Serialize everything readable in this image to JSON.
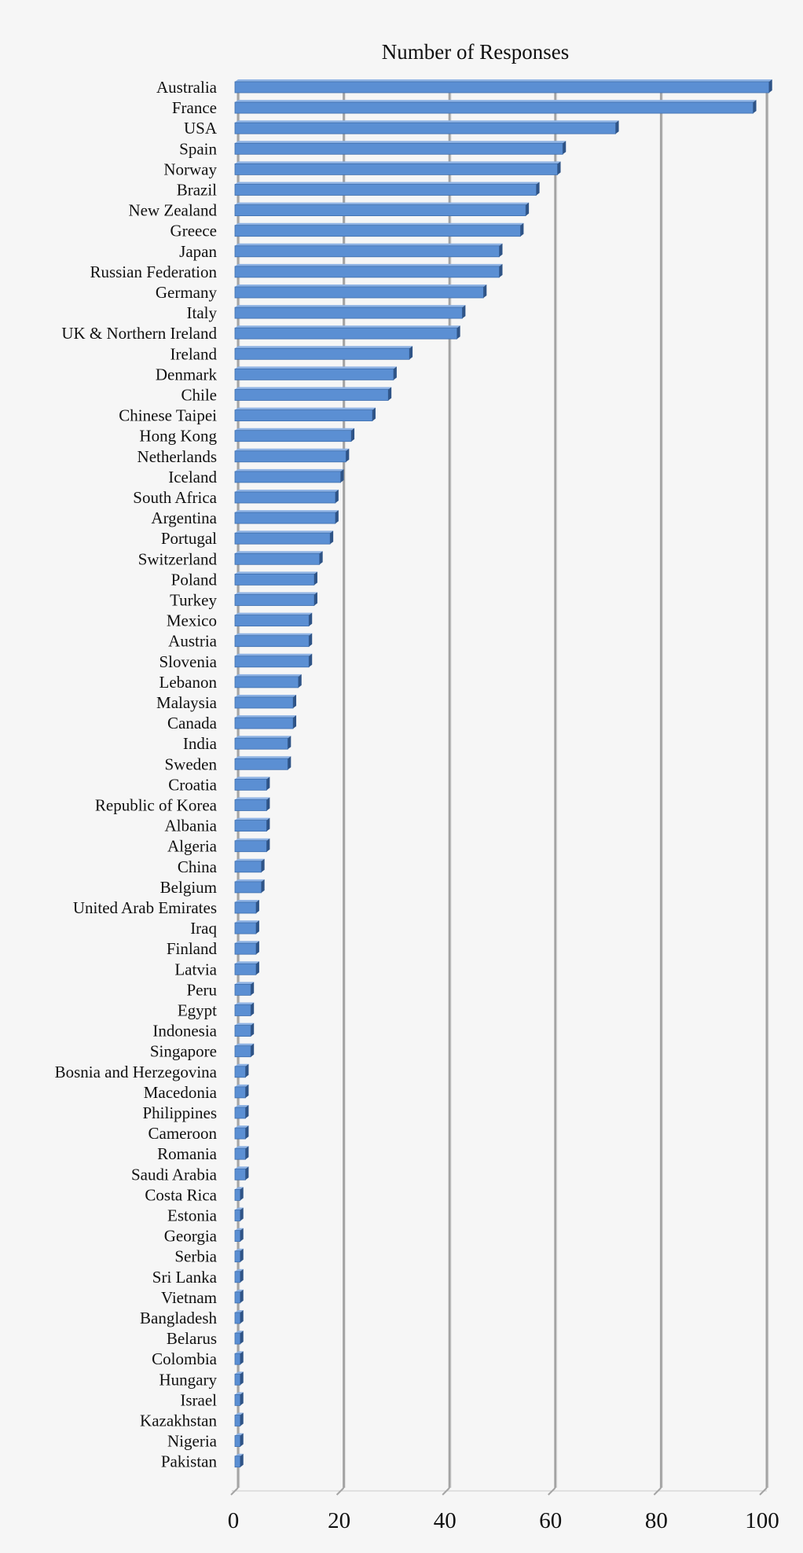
{
  "chart_data": {
    "type": "bar",
    "orientation": "horizontal",
    "style": "3d",
    "title": "Number of Responses",
    "xlabel": "",
    "ylabel": "",
    "xlim": [
      0,
      100
    ],
    "xticks": [
      0,
      20,
      40,
      60,
      80,
      100
    ],
    "grid": true,
    "bar_color": "#5b8fd3",
    "categories": [
      "Australia",
      "France",
      "USA",
      "Spain",
      "Norway",
      "Brazil",
      "New Zealand",
      "Greece",
      "Japan",
      "Russian Federation",
      "Germany",
      "Italy",
      "UK & Northern Ireland",
      "Ireland",
      "Denmark",
      "Chile",
      "Chinese Taipei",
      "Hong Kong",
      "Netherlands",
      "Iceland",
      "South Africa",
      "Argentina",
      "Portugal",
      "Switzerland",
      "Poland",
      "Turkey",
      "Mexico",
      "Austria",
      "Slovenia",
      "Lebanon",
      "Malaysia",
      "Canada",
      "India",
      "Sweden",
      "Croatia",
      "Republic of Korea",
      "Albania",
      "Algeria",
      "China",
      "Belgium",
      "United Arab Emirates",
      "Iraq",
      "Finland",
      "Latvia",
      "Peru",
      "Egypt",
      "Indonesia",
      "Singapore",
      "Bosnia and Herzegovina",
      "Macedonia",
      "Philippines",
      "Cameroon",
      "Romania",
      "Saudi Arabia",
      "Costa Rica",
      "Estonia",
      "Georgia",
      "Serbia",
      "Sri Lanka",
      "Vietnam",
      "Bangladesh",
      "Belarus",
      "Colombia",
      "Hungary",
      "Israel",
      "Kazakhstan",
      "Nigeria",
      "Pakistan"
    ],
    "values": [
      101,
      98,
      72,
      62,
      61,
      57,
      55,
      54,
      50,
      50,
      47,
      43,
      42,
      33,
      30,
      29,
      26,
      22,
      21,
      20,
      19,
      19,
      18,
      16,
      15,
      15,
      14,
      14,
      14,
      12,
      11,
      11,
      10,
      10,
      6,
      6,
      6,
      6,
      5,
      5,
      4,
      4,
      4,
      4,
      3,
      3,
      3,
      3,
      2,
      2,
      2,
      2,
      2,
      2,
      1,
      1,
      1,
      1,
      1,
      1,
      1,
      1,
      1,
      1,
      1,
      1,
      1,
      1
    ]
  }
}
